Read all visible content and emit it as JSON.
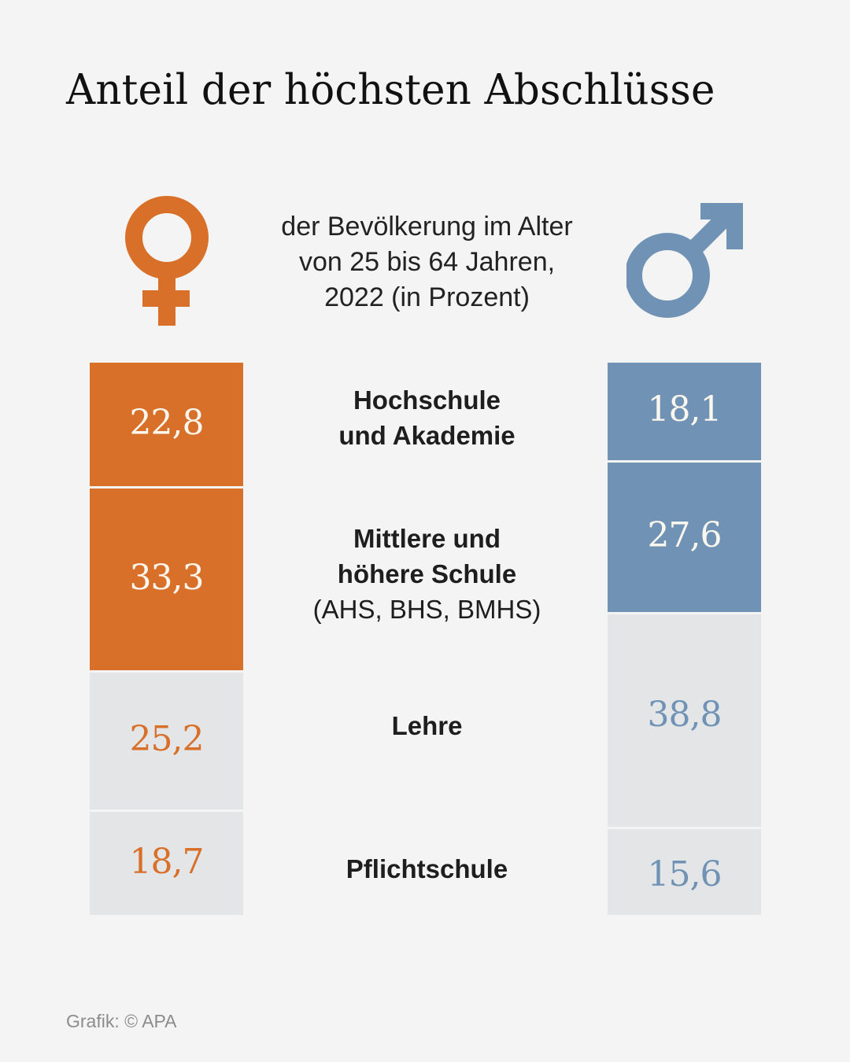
{
  "colors": {
    "female": "#d87029",
    "male": "#7093b5",
    "grey_box": "#e4e5e7",
    "background": "#f4f4f4",
    "label_on_color": "#fbf6ee"
  },
  "icons": {
    "female": "female-symbol-icon",
    "male": "male-symbol-icon"
  },
  "chart_data": {
    "type": "stacked-bar",
    "title": "Anteil der höchsten Abschlüsse",
    "subtitle": [
      "der Bevölkerung im Alter",
      "von 25 bis 64 Jahren,",
      "2022 (in Prozent)"
    ],
    "categories": [
      {
        "name": "Hochschule und Akademie",
        "lines": [
          "Hochschule",
          "und Akademie"
        ],
        "sub": ""
      },
      {
        "name": "Mittlere und höhere Schule",
        "lines": [
          "Mittlere und",
          "höhere Schule"
        ],
        "sub": "(AHS, BHS, BMHS)"
      },
      {
        "name": "Lehre",
        "lines": [
          "Lehre"
        ],
        "sub": ""
      },
      {
        "name": "Pflichtschule",
        "lines": [
          "Pflichtschule"
        ],
        "sub": ""
      }
    ],
    "series": [
      {
        "name": "Frauen",
        "symbol": "♀",
        "values": [
          22.8,
          33.3,
          25.2,
          18.7
        ],
        "labels": [
          "22,8",
          "33,3",
          "25,2",
          "18,7"
        ],
        "highlighted": [
          true,
          true,
          false,
          false
        ]
      },
      {
        "name": "Männer",
        "symbol": "♂",
        "values": [
          18.1,
          27.6,
          38.8,
          15.6
        ],
        "labels": [
          "18,1",
          "27,6",
          "38,8",
          "15,6"
        ],
        "highlighted": [
          true,
          true,
          false,
          false
        ]
      }
    ],
    "unit": "Prozent",
    "ylim": [
      0,
      100
    ]
  },
  "footer": {
    "source": "Grafik: © APA"
  }
}
